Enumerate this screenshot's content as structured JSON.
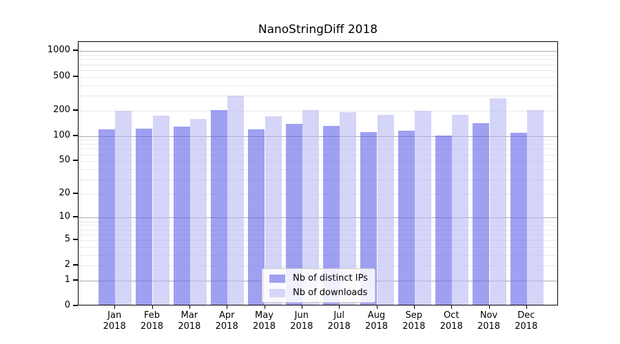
{
  "figure": {
    "background": "#ffffff"
  },
  "chart_data": {
    "type": "bar",
    "title": "NanoStringDiff 2018",
    "xlabel": "",
    "ylabel": "",
    "year": "2018",
    "categories": [
      "Jan",
      "Feb",
      "Mar",
      "Apr",
      "May",
      "Jun",
      "Jul",
      "Aug",
      "Sep",
      "Oct",
      "Nov",
      "Dec"
    ],
    "series": [
      {
        "name": "Nb of distinct IPs",
        "color": "rgba(102,102,235,0.62)",
        "legend_hex": "#a0a0f2",
        "values": [
          116,
          118,
          125,
          194,
          115,
          135,
          126,
          107,
          110,
          98,
          136,
          105
        ]
      },
      {
        "name": "Nb of downloads",
        "color": "rgba(187,187,245,0.62)",
        "legend_hex": "#d5d5f8",
        "values": [
          191,
          168,
          153,
          290,
          165,
          196,
          185,
          170,
          190,
          171,
          266,
          195
        ]
      }
    ],
    "yscale": "log10(value+1)",
    "ylim": [
      0,
      1300
    ],
    "yticks": [
      1000,
      500,
      200,
      100,
      50,
      20,
      10,
      5,
      2,
      1,
      0
    ],
    "grid": {
      "on": true,
      "major_lines": [
        1,
        10,
        100,
        1000
      ],
      "minor_lines": [
        2,
        3,
        4,
        5,
        6,
        7,
        8,
        9,
        20,
        30,
        40,
        50,
        60,
        70,
        80,
        90,
        200,
        300,
        400,
        500,
        600,
        700,
        800,
        900
      ],
      "major_color": "#a9a9a9",
      "minor_color": "#e9e9e9"
    },
    "legend_position": "lower center inside plot"
  }
}
